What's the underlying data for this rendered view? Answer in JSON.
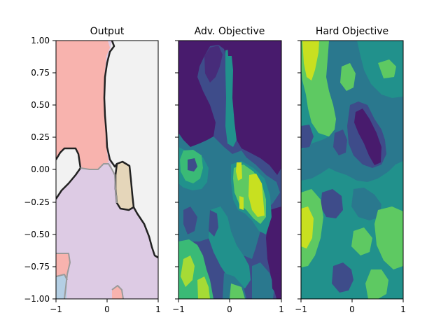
{
  "chart_data": [
    {
      "type": "contour",
      "title": "Output",
      "xlim": [
        -1,
        1
      ],
      "ylim": [
        -1,
        1
      ],
      "xticks": [
        "−1",
        "0",
        "1"
      ],
      "yticks": [
        "1.00",
        "0.75",
        "0.50",
        "0.25",
        "0.00",
        "−0.25",
        "−0.50",
        "−0.75",
        "−1.00"
      ],
      "class_colors": {
        "red_class": "#f8b3ae",
        "white_class": "#f2f2f2",
        "purple_class": "#ddcbe4",
        "tan_class": "#e5d6ba",
        "blue_class": "#b4cfe4"
      },
      "boundary_colors": [
        "#222222",
        "#9a9a9a"
      ]
    },
    {
      "type": "contour",
      "title": "Adv. Objective",
      "xlim": [
        -1,
        1
      ],
      "ylim": [
        -1,
        1
      ],
      "xticks": [
        "−1",
        "0",
        "1"
      ],
      "colormap": "viridis"
    },
    {
      "type": "contour",
      "title": "Hard Objective",
      "xlim": [
        -1,
        1
      ],
      "ylim": [
        -1,
        1
      ],
      "xticks": [
        "−1",
        "0",
        "1"
      ],
      "colormap": "viridis"
    }
  ]
}
